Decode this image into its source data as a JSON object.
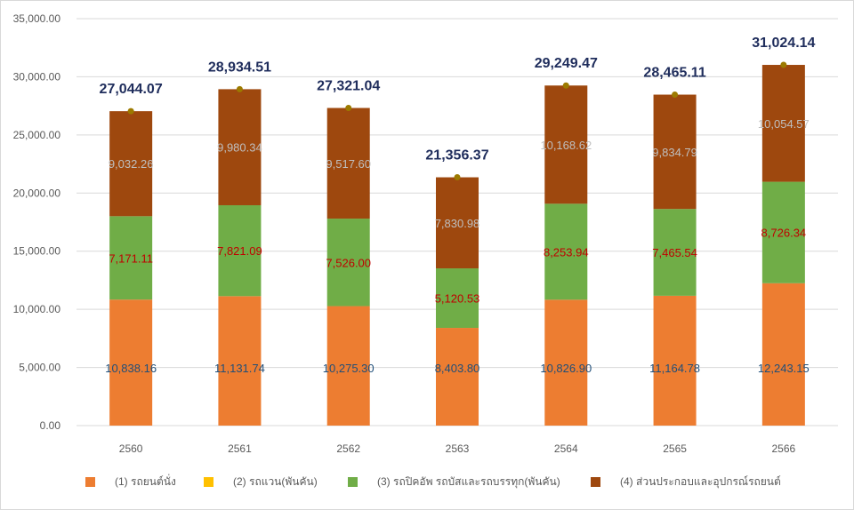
{
  "chart_data": {
    "type": "bar",
    "stacked": true,
    "title": "",
    "xlabel": "",
    "ylabel": "",
    "ylim": [
      0,
      35000
    ],
    "yticks": [
      "0.00",
      "5,000.00",
      "10,000.00",
      "15,000.00",
      "20,000.00",
      "25,000.00",
      "30,000.00",
      "35,000.00"
    ],
    "ytick_values": [
      0,
      5000,
      10000,
      15000,
      20000,
      25000,
      30000,
      35000
    ],
    "grid": true,
    "legend_position": "bottom",
    "categories": [
      "2560",
      "2561",
      "2562",
      "2563",
      "2564",
      "2565",
      "2566"
    ],
    "series": [
      {
        "name": "(1) รถยนต์นั่ง",
        "color": "#ED7D31",
        "label_color": "#1F4E79",
        "values": [
          10838.16,
          11131.74,
          10275.3,
          8403.8,
          10826.9,
          11164.78,
          12243.15
        ],
        "labels": [
          "10,838.16",
          "11,131.74",
          "10,275.30",
          "8,403.80",
          "10,826.90",
          "11,164.78",
          "12,243.15"
        ]
      },
      {
        "name": "(2) รถแวน(พันคัน)",
        "color": "#FFC000",
        "label_color": "#595959",
        "values": [
          0,
          0,
          0,
          0,
          0,
          0,
          0
        ],
        "labels": []
      },
      {
        "name": "(3) รถปิคอัพ รถบัสและรถบรรทุก(พันคัน)",
        "color": "#70AD47",
        "label_color": "#C00000",
        "values": [
          7171.11,
          7821.09,
          7526.0,
          5120.53,
          8253.94,
          7465.54,
          8726.34
        ],
        "labels": [
          "7,171.11",
          "7,821.09",
          "7,526.00",
          "5,120.53",
          "8,253.94",
          "7,465.54",
          "8,726.34"
        ]
      },
      {
        "name": "(4) ส่วนประกอบและอุปกรณ์รถยนต์",
        "color": "#9E480E",
        "label_color": "#BFBFBF",
        "values": [
          9032.26,
          9980.34,
          9517.6,
          7830.98,
          10168.62,
          9834.79,
          10054.57
        ],
        "labels": [
          "9,032.26",
          "9,980.34",
          "9,517.60",
          "7,830.98",
          "10,168.62",
          "9,834.79",
          "10,054.57"
        ]
      }
    ],
    "totals": {
      "name": "Total",
      "marker_color": "#9C7A00",
      "label_color": "#1F2D5C",
      "values": [
        27044.07,
        28934.51,
        27321.04,
        21356.37,
        29249.47,
        28465.11,
        31024.14
      ],
      "labels": [
        "27,044.07",
        "28,934.51",
        "27,321.04",
        "21,356.37",
        "29,249.47",
        "28,465.11",
        "31,024.14"
      ]
    }
  },
  "legend": {
    "items": [
      {
        "label": "(1) รถยนต์นั่ง",
        "color": "#ED7D31"
      },
      {
        "label": "(2) รถแวน(พันคัน)",
        "color": "#FFC000"
      },
      {
        "label": "(3) รถปิคอัพ รถบัสและรถบรรทุก(พันคัน)",
        "color": "#70AD47"
      },
      {
        "label": "(4) ส่วนประกอบและอุปกรณ์รถยนต์",
        "color": "#9E480E"
      }
    ]
  }
}
